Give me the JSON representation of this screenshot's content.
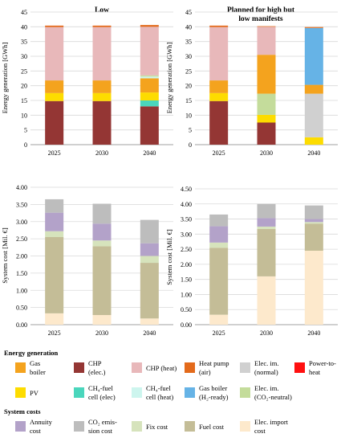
{
  "colors": {
    "CHP_elec": "#943634",
    "PV": "#fddc00",
    "CH4_fuel_cell_elec": "#4ad6bc",
    "CH4_fuel_cell_heat": "#cdf5ee",
    "Elec_im_CO2_neutral": "#c4dc9b",
    "Elec_im_normal": "#d0d0d0",
    "Gas_boiler": "#f4a31e",
    "Gas_boiler_H2": "#66b3e6",
    "CHP_heat": "#e8b8ba",
    "Heat_pump_air": "#e36a1b",
    "Power_to_heat": "#ff1010",
    "Annuity_cost": "#b3a2c9",
    "CO2_emission_cost": "#bdbdbd",
    "Fix_cost": "#d6e3bc",
    "Fuel_cost": "#c4bd97",
    "Elec_import_cost": "#fde9cc"
  },
  "legend": {
    "energy_title": "Energy generation",
    "energy_items": [
      {
        "key": "Gas_boiler",
        "lines": [
          "Gas",
          "boiler"
        ]
      },
      {
        "key": "CHP_elec",
        "lines": [
          "CHP",
          "(elec.)"
        ]
      },
      {
        "key": "CHP_heat",
        "lines": [
          "CHP (heat)"
        ]
      },
      {
        "key": "Heat_pump_air",
        "lines": [
          "Heat pump",
          "(air)"
        ]
      },
      {
        "key": "Elec_im_normal",
        "lines": [
          "Elec. im.",
          "(normal)"
        ]
      },
      {
        "key": "Power_to_heat",
        "lines": [
          "Power-to-",
          "heat"
        ]
      },
      {
        "key": "PV",
        "lines": [
          "PV"
        ]
      },
      {
        "key": "CH4_fuel_cell_elec",
        "lines": [
          "CH₄-fuel",
          "cell (elec)"
        ]
      },
      {
        "key": "CH4_fuel_cell_heat",
        "lines": [
          "CH₄-fuel",
          "cell (heat)"
        ]
      },
      {
        "key": "Gas_boiler_H2",
        "lines": [
          "Gas boiler",
          "(H₂-ready)"
        ]
      },
      {
        "key": "Elec_im_CO2_neutral",
        "lines": [
          "Elec. im.",
          "(CO₂-neutral)"
        ]
      }
    ],
    "cost_title": "System costs",
    "cost_items": [
      {
        "key": "Annuity_cost",
        "lines": [
          "Annuity",
          "cost"
        ]
      },
      {
        "key": "CO2_emission_cost",
        "lines": [
          "CO₂ emis-",
          "sion cost"
        ]
      },
      {
        "key": "Fix_cost",
        "lines": [
          "Fix cost"
        ]
      },
      {
        "key": "Fuel_cost",
        "lines": [
          "Fuel cost"
        ]
      },
      {
        "key": "Elec_import_cost",
        "lines": [
          "Elec. import",
          "cost"
        ]
      }
    ]
  },
  "chart_data": [
    {
      "type": "bar",
      "stacked": true,
      "title": "Low",
      "ylabel": "Energy generation [GWh]",
      "ylim": [
        0,
        45
      ],
      "yticks": [
        "0",
        "5",
        "10",
        "15",
        "20",
        "25",
        "30",
        "35",
        "40",
        "45"
      ],
      "categories": [
        "2025",
        "2030",
        "2040"
      ],
      "series": [
        {
          "key": "CHP_elec",
          "values": [
            14.8,
            14.8,
            13.0
          ]
        },
        {
          "key": "CH4_fuel_cell_elec",
          "values": [
            0,
            0,
            2.0
          ]
        },
        {
          "key": "PV",
          "values": [
            2.7,
            2.7,
            2.7
          ]
        },
        {
          "key": "Gas_boiler",
          "values": [
            4.3,
            4.3,
            4.8
          ]
        },
        {
          "key": "CH4_fuel_cell_heat",
          "values": [
            0,
            0,
            0.6
          ]
        },
        {
          "key": "Elec_im_CO2_neutral",
          "values": [
            0,
            0,
            0.4
          ]
        },
        {
          "key": "CHP_heat",
          "values": [
            18.1,
            18.1,
            16.5
          ]
        },
        {
          "key": "Heat_pump_air",
          "values": [
            0.5,
            0.5,
            0.6
          ]
        }
      ]
    },
    {
      "type": "bar",
      "stacked": true,
      "title": "Planned for high but low manifests",
      "ylabel": "Energy generation [GWh]",
      "ylim": [
        0,
        45
      ],
      "yticks": [
        "0",
        "5",
        "10",
        "15",
        "20",
        "25",
        "30",
        "35",
        "40",
        "45"
      ],
      "categories": [
        "2025",
        "2030",
        "2040"
      ],
      "series": [
        {
          "key": "CHP_elec",
          "values": [
            14.8,
            7.5,
            0
          ]
        },
        {
          "key": "PV",
          "values": [
            2.7,
            2.6,
            2.5
          ]
        },
        {
          "key": "Elec_im_CO2_neutral",
          "values": [
            0,
            7.2,
            0
          ]
        },
        {
          "key": "Elec_im_normal",
          "values": [
            0,
            0,
            14.8
          ]
        },
        {
          "key": "Gas_boiler",
          "values": [
            4.3,
            13.2,
            3.0
          ]
        },
        {
          "key": "Gas_boiler_H2",
          "values": [
            0,
            0,
            19.3
          ]
        },
        {
          "key": "CHP_heat",
          "values": [
            18.1,
            9.5,
            0
          ]
        },
        {
          "key": "Heat_pump_air",
          "values": [
            0.5,
            0.2,
            0.3
          ]
        }
      ]
    },
    {
      "type": "bar",
      "stacked": true,
      "title": "",
      "ylabel": "System cost [Mil. €]",
      "ylim": [
        0,
        4.0
      ],
      "yticks": [
        "0.00",
        "0.50",
        "1.00",
        "1.50",
        "2.00",
        "2.50",
        "3.00",
        "3.50",
        "4.00"
      ],
      "categories": [
        "2025",
        "2030",
        "2040"
      ],
      "series": [
        {
          "key": "Elec_import_cost",
          "values": [
            0.33,
            0.28,
            0.18
          ]
        },
        {
          "key": "Fuel_cost",
          "values": [
            2.22,
            2.0,
            1.62
          ]
        },
        {
          "key": "Fix_cost",
          "values": [
            0.17,
            0.17,
            0.2
          ]
        },
        {
          "key": "Annuity_cost",
          "values": [
            0.54,
            0.49,
            0.37
          ]
        },
        {
          "key": "CO2_emission_cost",
          "values": [
            0.39,
            0.58,
            0.68
          ]
        }
      ]
    },
    {
      "type": "bar",
      "stacked": true,
      "title": "",
      "ylabel": "System cost [Mil. €]",
      "ylim": [
        0,
        4.5
      ],
      "yticks": [
        "0.00",
        "0.50",
        "1.00",
        "1.50",
        "2.00",
        "2.50",
        "3.00",
        "3.50",
        "4.00",
        "4.50"
      ],
      "categories": [
        "2025",
        "2030",
        "2040"
      ],
      "series": [
        {
          "key": "Elec_import_cost",
          "values": [
            0.33,
            1.6,
            2.45
          ]
        },
        {
          "key": "Fuel_cost",
          "values": [
            2.22,
            1.57,
            0.9
          ]
        },
        {
          "key": "Fix_cost",
          "values": [
            0.17,
            0.08,
            0.05
          ]
        },
        {
          "key": "Annuity_cost",
          "values": [
            0.54,
            0.28,
            0.1
          ]
        },
        {
          "key": "CO2_emission_cost",
          "values": [
            0.39,
            0.47,
            0.45
          ]
        }
      ]
    }
  ]
}
